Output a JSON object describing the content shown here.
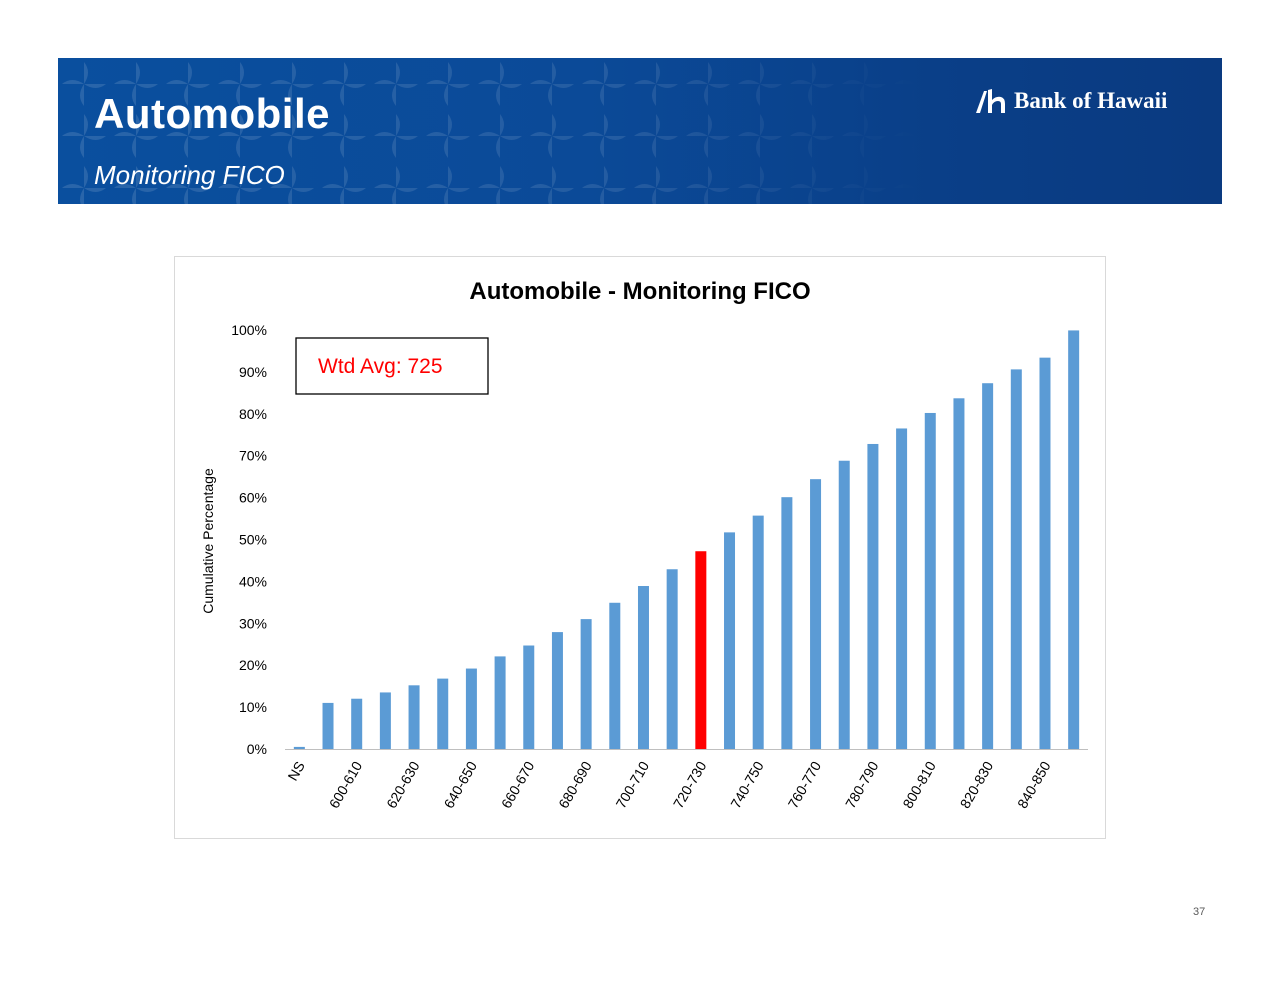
{
  "header": {
    "title": "Automobile",
    "subtitle": "Monitoring FICO",
    "logo_text": "Bank of Hawaii"
  },
  "colors": {
    "banner": "#0b4a98",
    "bar": "#5b9bd5",
    "highlight_bar": "#ff0000",
    "annotation_text": "#ff0000"
  },
  "chart_data": {
    "type": "bar",
    "title": "Automobile - Monitoring FICO",
    "xlabel": "",
    "ylabel": "Cumulative Percentage",
    "ylim": [
      0,
      1
    ],
    "yticks": [
      "0%",
      "10%",
      "20%",
      "30%",
      "40%",
      "50%",
      "60%",
      "70%",
      "80%",
      "90%",
      "100%"
    ],
    "categories": [
      "NS",
      "",
      "600-610",
      "",
      "620-630",
      "",
      "640-650",
      "",
      "660-670",
      "",
      "680-690",
      "",
      "700-710",
      "",
      "720-730",
      "",
      "740-750",
      "",
      "760-770",
      "",
      "780-790",
      "",
      "800-810",
      "",
      "820-830",
      "",
      "840-850",
      ""
    ],
    "values": [
      0.005,
      0.11,
      0.12,
      0.135,
      0.152,
      0.168,
      0.192,
      0.221,
      0.247,
      0.279,
      0.31,
      0.349,
      0.389,
      0.429,
      0.472,
      0.517,
      0.557,
      0.601,
      0.644,
      0.688,
      0.728,
      0.765,
      0.802,
      0.837,
      0.873,
      0.906,
      0.934,
      0.999
    ],
    "highlight_index": 14,
    "annotation": "Wtd Avg: 725",
    "grid": false,
    "legend": "none"
  },
  "footer": {
    "page_number": "37"
  }
}
